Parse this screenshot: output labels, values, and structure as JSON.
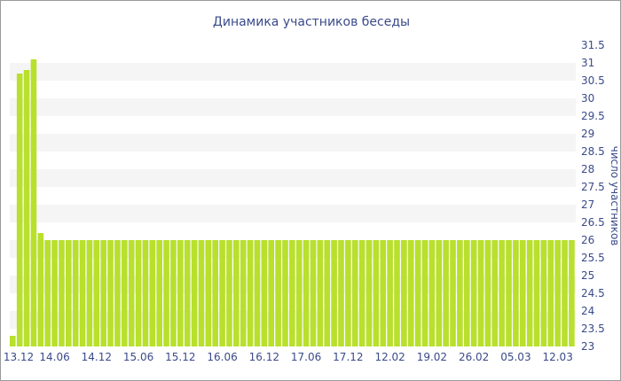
{
  "chart_data": {
    "type": "bar",
    "title": "Динамика участников беседы",
    "ylabel": "число участников",
    "ylim": [
      23,
      31.5
    ],
    "yticks": [
      23,
      23.5,
      24,
      24.5,
      25,
      25.5,
      26,
      26.5,
      27,
      27.5,
      28,
      28.5,
      29,
      29.5,
      30,
      30.5,
      31,
      31.5
    ],
    "x_tick_labels": [
      "13.12",
      "14.06",
      "14.12",
      "15.06",
      "15.12",
      "16.06",
      "16.12",
      "17.06",
      "17.12",
      "12.02",
      "19.02",
      "26.02",
      "05.03",
      "12.03"
    ],
    "x_tick_bar_index": [
      0,
      6,
      12,
      18,
      24,
      30,
      36,
      42,
      48,
      54,
      60,
      66,
      72,
      78
    ],
    "values": [
      23.3,
      30.7,
      30.8,
      31.1,
      26.2,
      26,
      26,
      26,
      26,
      26,
      26,
      26,
      26,
      26,
      26,
      26,
      26,
      26,
      26,
      26,
      26,
      26,
      26,
      26,
      26,
      26,
      26,
      26,
      26,
      26,
      26,
      26,
      26,
      26,
      26,
      26,
      26,
      26,
      26,
      26,
      26,
      26,
      26,
      26,
      26,
      26,
      26,
      26,
      26,
      26,
      26,
      26,
      26,
      26,
      26,
      26,
      26,
      26,
      26,
      26,
      26,
      26,
      26,
      26,
      26,
      26,
      26,
      26,
      26,
      26,
      26,
      26,
      26,
      26,
      26,
      26,
      26,
      26,
      26,
      26,
      26
    ],
    "bar_color": "#b8e02c",
    "grid_band_color": "#f5f5f5",
    "axis_text_color": "#3a4a8a",
    "y_axis_side": "right",
    "grid": true,
    "legend": "none"
  }
}
